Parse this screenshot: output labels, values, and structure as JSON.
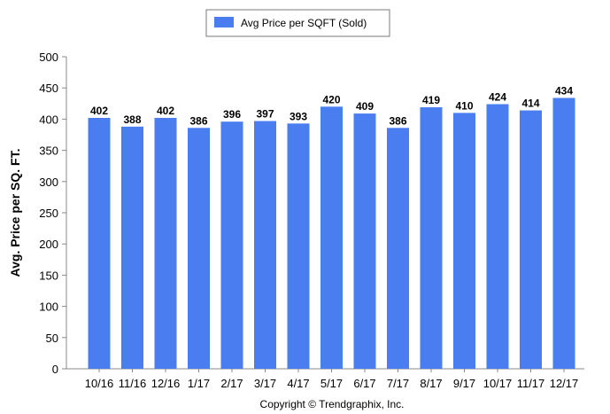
{
  "chart_data": {
    "type": "bar",
    "categories": [
      "10/16",
      "11/16",
      "12/16",
      "1/17",
      "2/17",
      "3/17",
      "4/17",
      "5/17",
      "6/17",
      "7/17",
      "8/17",
      "9/17",
      "10/17",
      "11/17",
      "12/17"
    ],
    "series": [
      {
        "name": "Avg Price per SQFT (Sold)",
        "color": "#4a7ef0",
        "values": [
          402,
          388,
          402,
          386,
          396,
          397,
          393,
          420,
          409,
          386,
          419,
          410,
          424,
          414,
          434
        ]
      }
    ],
    "ylabel": "Avg. Price per SQ. FT.",
    "ylim": [
      0,
      500
    ],
    "yticks": [
      0,
      50,
      100,
      150,
      200,
      250,
      300,
      350,
      400,
      450,
      500
    ],
    "grid": false,
    "legend_position": "top-center"
  },
  "footer": {
    "copyright": "Copyright © Trendgraphix, Inc."
  }
}
